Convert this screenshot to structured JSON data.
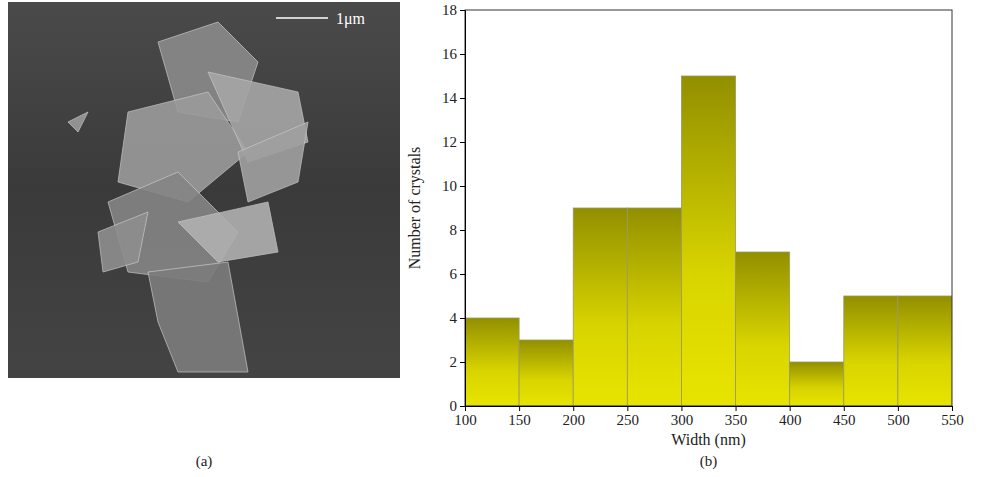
{
  "image_panel": {
    "label": "(a)",
    "scale_bar": "1μm"
  },
  "chart_data": {
    "type": "histogram",
    "caption": "(b)",
    "x_label": "Width (nm)",
    "y_label": "Number of crystals",
    "bins": [
      100,
      150,
      200,
      250,
      300,
      350,
      400,
      450,
      500,
      550
    ],
    "values": [
      4,
      3,
      9,
      9,
      15,
      7,
      2,
      5,
      5
    ],
    "color": "#d8d400",
    "xlim": [
      100,
      550
    ],
    "xticks": [
      100,
      150,
      200,
      250,
      300,
      350,
      400,
      450,
      500,
      550
    ],
    "ylim": [
      0,
      18
    ],
    "yticks": [
      0,
      2,
      4,
      6,
      8,
      10,
      12,
      14,
      16,
      18
    ],
    "grid": false
  }
}
